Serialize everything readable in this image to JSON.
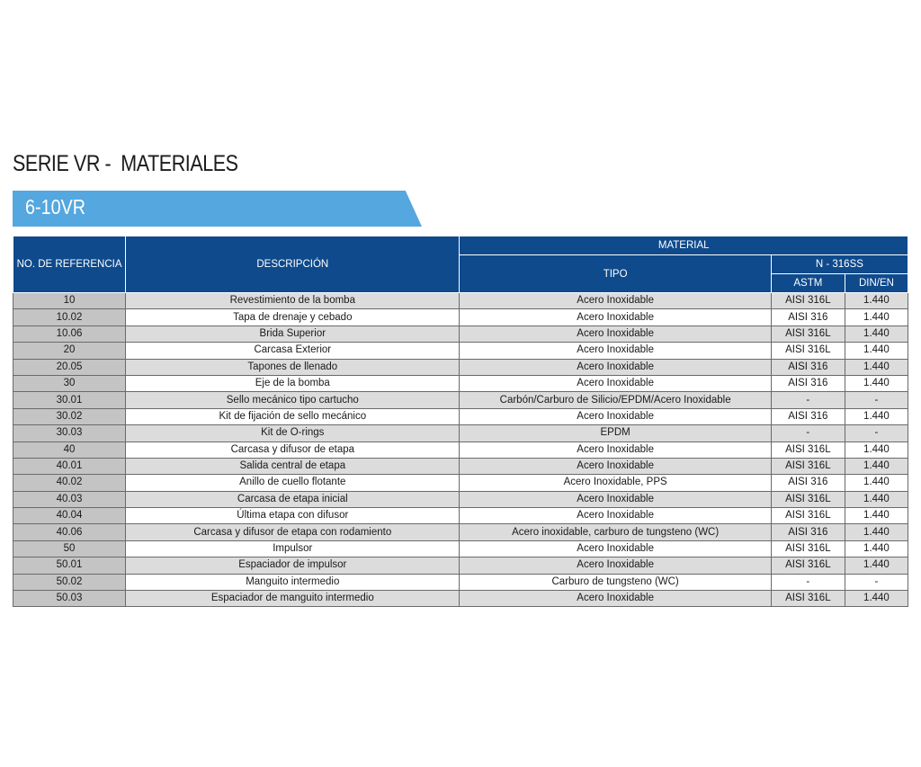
{
  "page": {
    "title": "SERIE VR -  MATERIALES",
    "banner": "6-10VR"
  },
  "table": {
    "headers": {
      "ref": "NO. DE REFERENCIA",
      "desc": "DESCRIPCIÓN",
      "material": "MATERIAL",
      "tipo": "TIPO",
      "grade": "N - 316SS",
      "astm": "ASTM",
      "din": "DIN/EN"
    },
    "rows": [
      {
        "ref": "10",
        "desc": "Revestimiento de la bomba",
        "tipo": "Acero Inoxidable",
        "astm": "AISI 316L",
        "din": "1.440"
      },
      {
        "ref": "10.02",
        "desc": "Tapa de drenaje y cebado",
        "tipo": "Acero Inoxidable",
        "astm": "AISI 316",
        "din": "1.440"
      },
      {
        "ref": "10.06",
        "desc": "Brida Superior",
        "tipo": "Acero Inoxidable",
        "astm": "AISI 316L",
        "din": "1.440"
      },
      {
        "ref": "20",
        "desc": "Carcasa Exterior",
        "tipo": "Acero Inoxidable",
        "astm": "AISI 316L",
        "din": "1.440"
      },
      {
        "ref": "20.05",
        "desc": "Tapones de llenado",
        "tipo": "Acero Inoxidable",
        "astm": "AISI 316",
        "din": "1.440"
      },
      {
        "ref": "30",
        "desc": "Eje de la bomba",
        "tipo": "Acero Inoxidable",
        "astm": "AISI 316",
        "din": "1.440"
      },
      {
        "ref": "30.01",
        "desc": "Sello mecánico tipo cartucho",
        "tipo": "Carbón/Carburo de Silicio/EPDM/Acero Inoxidable",
        "astm": "-",
        "din": "-"
      },
      {
        "ref": "30.02",
        "desc": "Kit de fijación de sello mecánico",
        "tipo": "Acero Inoxidable",
        "astm": "AISI 316",
        "din": "1.440"
      },
      {
        "ref": "30.03",
        "desc": "Kit de O-rings",
        "tipo": "EPDM",
        "astm": "-",
        "din": "-"
      },
      {
        "ref": "40",
        "desc": "Carcasa y difusor de etapa",
        "tipo": "Acero Inoxidable",
        "astm": "AISI 316L",
        "din": "1.440"
      },
      {
        "ref": "40.01",
        "desc": "Salida central de etapa",
        "tipo": "Acero Inoxidable",
        "astm": "AISI 316L",
        "din": "1.440"
      },
      {
        "ref": "40.02",
        "desc": "Anillo de cuello flotante",
        "tipo": "Acero Inoxidable, PPS",
        "astm": "AISI 316",
        "din": "1.440"
      },
      {
        "ref": "40.03",
        "desc": "Carcasa de etapa inicial",
        "tipo": "Acero Inoxidable",
        "astm": "AISI 316L",
        "din": "1.440"
      },
      {
        "ref": "40.04",
        "desc": "Última etapa con difusor",
        "tipo": "Acero Inoxidable",
        "astm": "AISI 316L",
        "din": "1.440"
      },
      {
        "ref": "40.06",
        "desc": "Carcasa y difusor de etapa con rodamiento",
        "tipo": "Acero inoxidable, carburo de tungsteno (WC)",
        "astm": "AISI 316",
        "din": "1.440"
      },
      {
        "ref": "50",
        "desc": "Impulsor",
        "tipo": "Acero Inoxidable",
        "astm": "AISI 316L",
        "din": "1.440"
      },
      {
        "ref": "50.01",
        "desc": "Espaciador de impulsor",
        "tipo": "Acero Inoxidable",
        "astm": "AISI 316L",
        "din": "1.440"
      },
      {
        "ref": "50.02",
        "desc": "Manguito intermedio",
        "tipo": "Carburo de tungsteno (WC)",
        "astm": "-",
        "din": "-"
      },
      {
        "ref": "50.03",
        "desc": "Espaciador de manguito intermedio",
        "tipo": "Acero Inoxidable",
        "astm": "AISI 316L",
        "din": "1.440"
      }
    ]
  }
}
